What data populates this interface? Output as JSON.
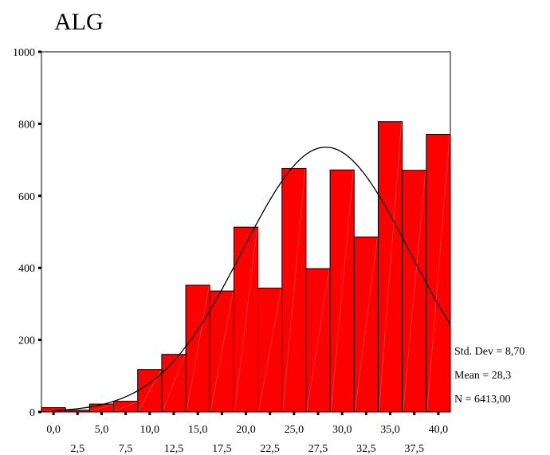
{
  "chart_data": {
    "type": "bar",
    "title": "ALG",
    "xlabel": "",
    "ylabel": "",
    "ylim": [
      0,
      1000
    ],
    "yticks": [
      0,
      200,
      400,
      600,
      800,
      1000
    ],
    "bin_width": 2.5,
    "xlim": [
      -1.25,
      41.25
    ],
    "x_centers": [
      0,
      2.5,
      5,
      7.5,
      10,
      12.5,
      15,
      17.5,
      20,
      22.5,
      25,
      27.5,
      30,
      32.5,
      35,
      37.5,
      40
    ],
    "values": [
      12,
      5,
      22,
      30,
      118,
      160,
      352,
      336,
      513,
      344,
      676,
      398,
      672,
      486,
      806,
      671,
      771
    ],
    "xticks_row1": [
      "0,0",
      "5,0",
      "10,0",
      "15,0",
      "20,0",
      "25,0",
      "30,0",
      "35,0",
      "40,0"
    ],
    "xticks_row1_values": [
      0,
      5,
      10,
      15,
      20,
      25,
      30,
      35,
      40
    ],
    "xticks_row2": [
      "2,5",
      "7,5",
      "12,5",
      "17,5",
      "22,5",
      "27,5",
      "32,5",
      "37,5"
    ],
    "xticks_row2_values": [
      2.5,
      7.5,
      12.5,
      17.5,
      22.5,
      27.5,
      32.5,
      37.5
    ],
    "normal_curve": {
      "mean": 28.3,
      "sd": 8.7,
      "n": 6413,
      "bin_width": 2.5
    },
    "grid": false,
    "bar_color": "#ff0000",
    "stats": {
      "std_dev": "Std. Dev = 8,70",
      "mean": "Mean = 28,3",
      "n": "N = 6413,00"
    }
  }
}
